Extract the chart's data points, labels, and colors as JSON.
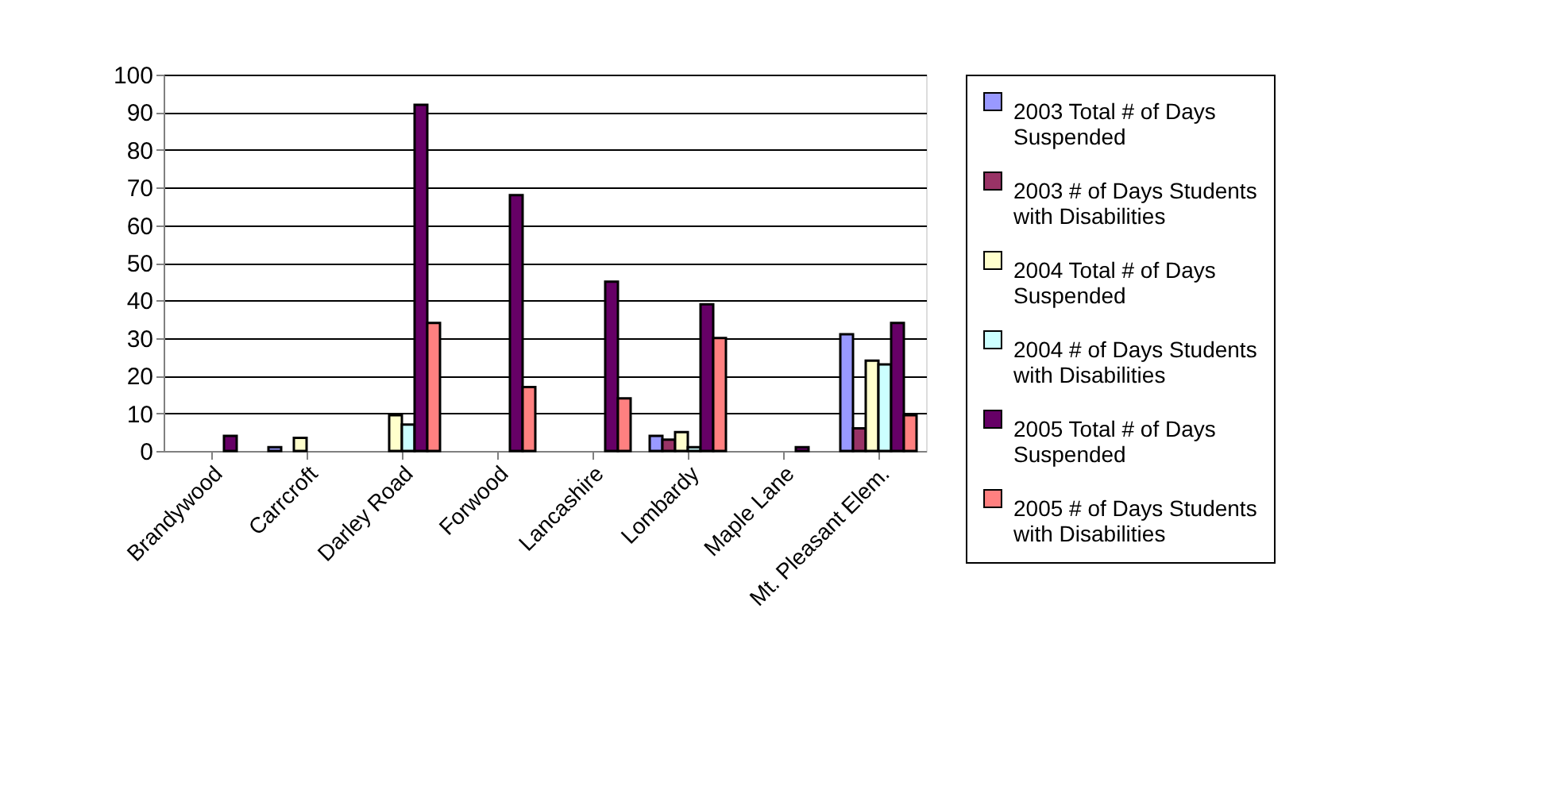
{
  "chart_data": {
    "type": "bar",
    "categories": [
      "Brandywood",
      "Carrcroft",
      "Darley Road",
      "Forwood",
      "Lancashire",
      "Lombardy",
      "Maple Lane",
      "Mt. Pleasant Elem."
    ],
    "series": [
      {
        "name": "2003 Total # of Days Suspended",
        "color": "#9999ff",
        "values": [
          null,
          1,
          null,
          null,
          null,
          4,
          null,
          31
        ]
      },
      {
        "name": "2003 # of Days Students with Disabilities",
        "color": "#993366",
        "values": [
          null,
          null,
          null,
          null,
          null,
          3,
          null,
          6
        ]
      },
      {
        "name": "2004 Total # of Days Suspended",
        "color": "#ffffcc",
        "values": [
          null,
          3.5,
          9.5,
          null,
          null,
          5,
          null,
          24
        ]
      },
      {
        "name": "2004 # of Days Students with Disabilities",
        "color": "#ccffff",
        "values": [
          null,
          null,
          7,
          null,
          null,
          1,
          null,
          23
        ]
      },
      {
        "name": "2005 Total # of Days Suspended",
        "color": "#660066",
        "values": [
          4,
          null,
          92,
          68,
          45,
          39,
          1,
          34
        ]
      },
      {
        "name": "2005 # of Days Students with Disabilities",
        "color": "#ff8080",
        "values": [
          null,
          null,
          34,
          17,
          14,
          30,
          null,
          9.5
        ]
      }
    ],
    "ylim": [
      0,
      100
    ],
    "yticks": [
      0,
      10,
      20,
      30,
      40,
      50,
      60,
      70,
      80,
      90,
      100
    ],
    "grid": "y",
    "legend": "right"
  }
}
